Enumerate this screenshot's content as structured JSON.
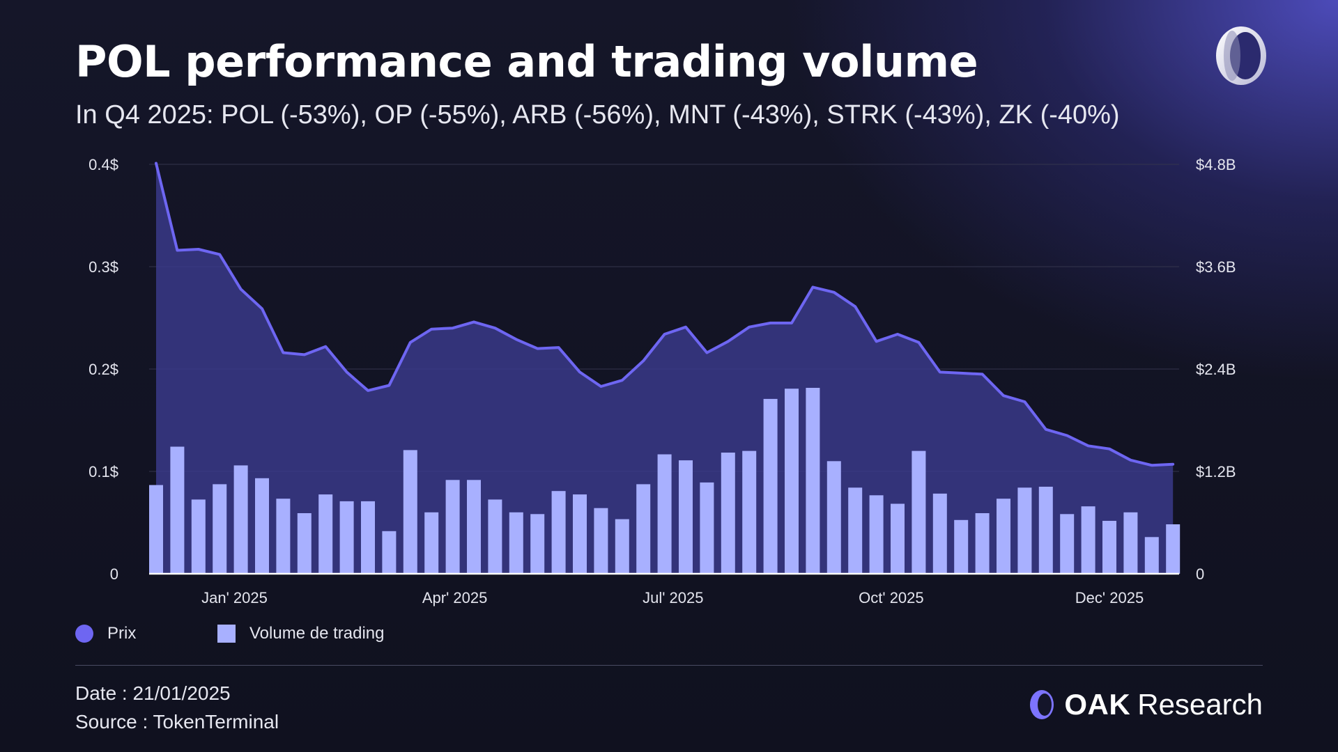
{
  "title": "POL performance and trading volume",
  "subtitle": "In Q4 2025: POL (-53%), OP (-55%), ARB (-56%), MNT (-43%), STRK (-43%), ZK (-40%)",
  "footer": {
    "date": "Date : 21/01/2025",
    "source": "Source : TokenTerminal"
  },
  "brand": {
    "name": "OAK",
    "suffix": "Research",
    "mark_icon": "oak-ring-icon"
  },
  "colors": {
    "price_line": "#6e66f2",
    "price_area": "#3b3a8c",
    "volume_bar": "#a8b0ff",
    "grid": "#34354d",
    "baseline": "#ffffff"
  },
  "chart_data": {
    "type": "bar+line",
    "legend": {
      "position": "bottom-left",
      "entries": [
        "Prix",
        "Volume de trading"
      ]
    },
    "grid": true,
    "y_left": {
      "ticks": [
        "0",
        "0.1$",
        "0.2$",
        "0.3$",
        "0.4$"
      ],
      "range": [
        0,
        0.4
      ]
    },
    "y_right": {
      "ticks": [
        "0",
        "$1.2B",
        "$2.4B",
        "$3.6B",
        "$4.8B"
      ],
      "range": [
        0,
        4.8
      ]
    },
    "x_labels": [
      {
        "label": "Jan' 2025",
        "index": 3.7
      },
      {
        "label": "Apr' 2025",
        "index": 14.1
      },
      {
        "label": "Jul' 2025",
        "index": 24.4
      },
      {
        "label": "Oct' 2025",
        "index": 34.7
      },
      {
        "label": "Dec' 2025",
        "index": 45.0
      }
    ],
    "series": [
      {
        "name": "Prix",
        "type": "line",
        "axis": "left",
        "values": [
          0.401,
          0.316,
          0.317,
          0.312,
          0.278,
          0.259,
          0.216,
          0.214,
          0.222,
          0.197,
          0.179,
          0.184,
          0.226,
          0.239,
          0.24,
          0.246,
          0.24,
          0.229,
          0.22,
          0.221,
          0.197,
          0.183,
          0.189,
          0.208,
          0.234,
          0.241,
          0.216,
          0.227,
          0.241,
          0.245,
          0.245,
          0.28,
          0.275,
          0.261,
          0.227,
          0.234,
          0.226,
          0.197,
          0.196,
          0.195,
          0.174,
          0.168,
          0.141,
          0.135,
          0.125,
          0.122,
          0.111,
          0.106,
          0.107
        ]
      },
      {
        "name": "Volume de trading",
        "type": "bar",
        "axis": "right",
        "values": [
          1.04,
          1.49,
          0.87,
          1.05,
          1.27,
          1.12,
          0.88,
          0.71,
          0.93,
          0.85,
          0.85,
          0.5,
          1.45,
          0.72,
          1.1,
          1.1,
          0.87,
          0.72,
          0.7,
          0.97,
          0.93,
          0.77,
          0.64,
          1.05,
          1.4,
          1.33,
          1.07,
          1.42,
          1.44,
          2.05,
          2.17,
          2.18,
          1.32,
          1.01,
          0.92,
          0.82,
          1.44,
          0.94,
          0.63,
          0.71,
          0.88,
          1.01,
          1.02,
          0.7,
          0.79,
          0.62,
          0.72,
          0.43,
          0.58
        ]
      }
    ]
  }
}
